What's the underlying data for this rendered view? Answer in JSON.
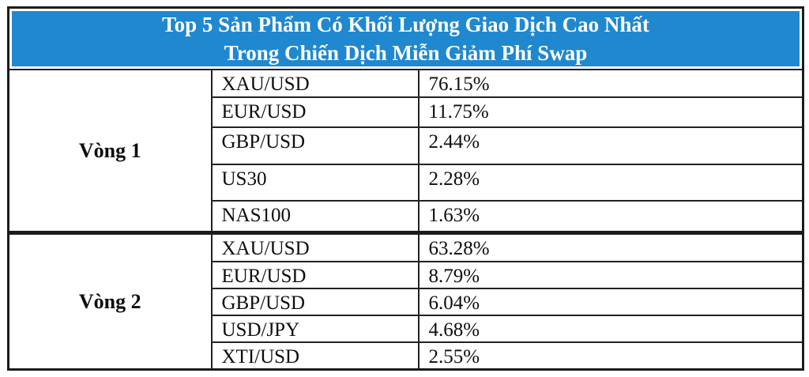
{
  "title": {
    "line1": "Top 5 Sản Phẩm Có Khối Lượng Giao Dịch Cao Nhất",
    "line2": "Trong Chiến Dịch Miễn Giảm Phí Swap"
  },
  "colors": {
    "header_bg": "#2088CE",
    "header_text": "#FFFFFF",
    "border": "#1B1B1B",
    "body_text": "#0D0D0D"
  },
  "table": {
    "columns": [
      "round",
      "product",
      "share"
    ],
    "rounds": [
      {
        "label": "Vòng 1",
        "rows": [
          {
            "product": "XAU/USD",
            "share": "76.15%"
          },
          {
            "product": "EUR/USD",
            "share": "11.75%"
          },
          {
            "product": "GBP/USD",
            "share": "2.44%"
          },
          {
            "product": "US30",
            "share": "2.28%"
          },
          {
            "product": "NAS100",
            "share": "1.63%"
          }
        ]
      },
      {
        "label": "Vòng 2",
        "rows": [
          {
            "product": "XAU/USD",
            "share": "63.28%"
          },
          {
            "product": "EUR/USD",
            "share": "8.79%"
          },
          {
            "product": "GBP/USD",
            "share": "6.04%"
          },
          {
            "product": "USD/JPY",
            "share": "4.68%"
          },
          {
            "product": "XTI/USD",
            "share": "2.55%"
          }
        ]
      }
    ]
  },
  "chart_data": {
    "type": "table",
    "title": "Top 5 Sản Phẩm Có Khối Lượng Giao Dịch Cao Nhất Trong Chiến Dịch Miễn Giảm Phí Swap",
    "groups": [
      {
        "name": "Vòng 1",
        "categories": [
          "XAU/USD",
          "EUR/USD",
          "GBP/USD",
          "US30",
          "NAS100"
        ],
        "values": [
          76.15,
          11.75,
          2.44,
          2.28,
          1.63
        ],
        "unit": "%"
      },
      {
        "name": "Vòng 2",
        "categories": [
          "XAU/USD",
          "EUR/USD",
          "GBP/USD",
          "USD/JPY",
          "XTI/USD"
        ],
        "values": [
          63.28,
          8.79,
          6.04,
          4.68,
          2.55
        ],
        "unit": "%"
      }
    ]
  }
}
